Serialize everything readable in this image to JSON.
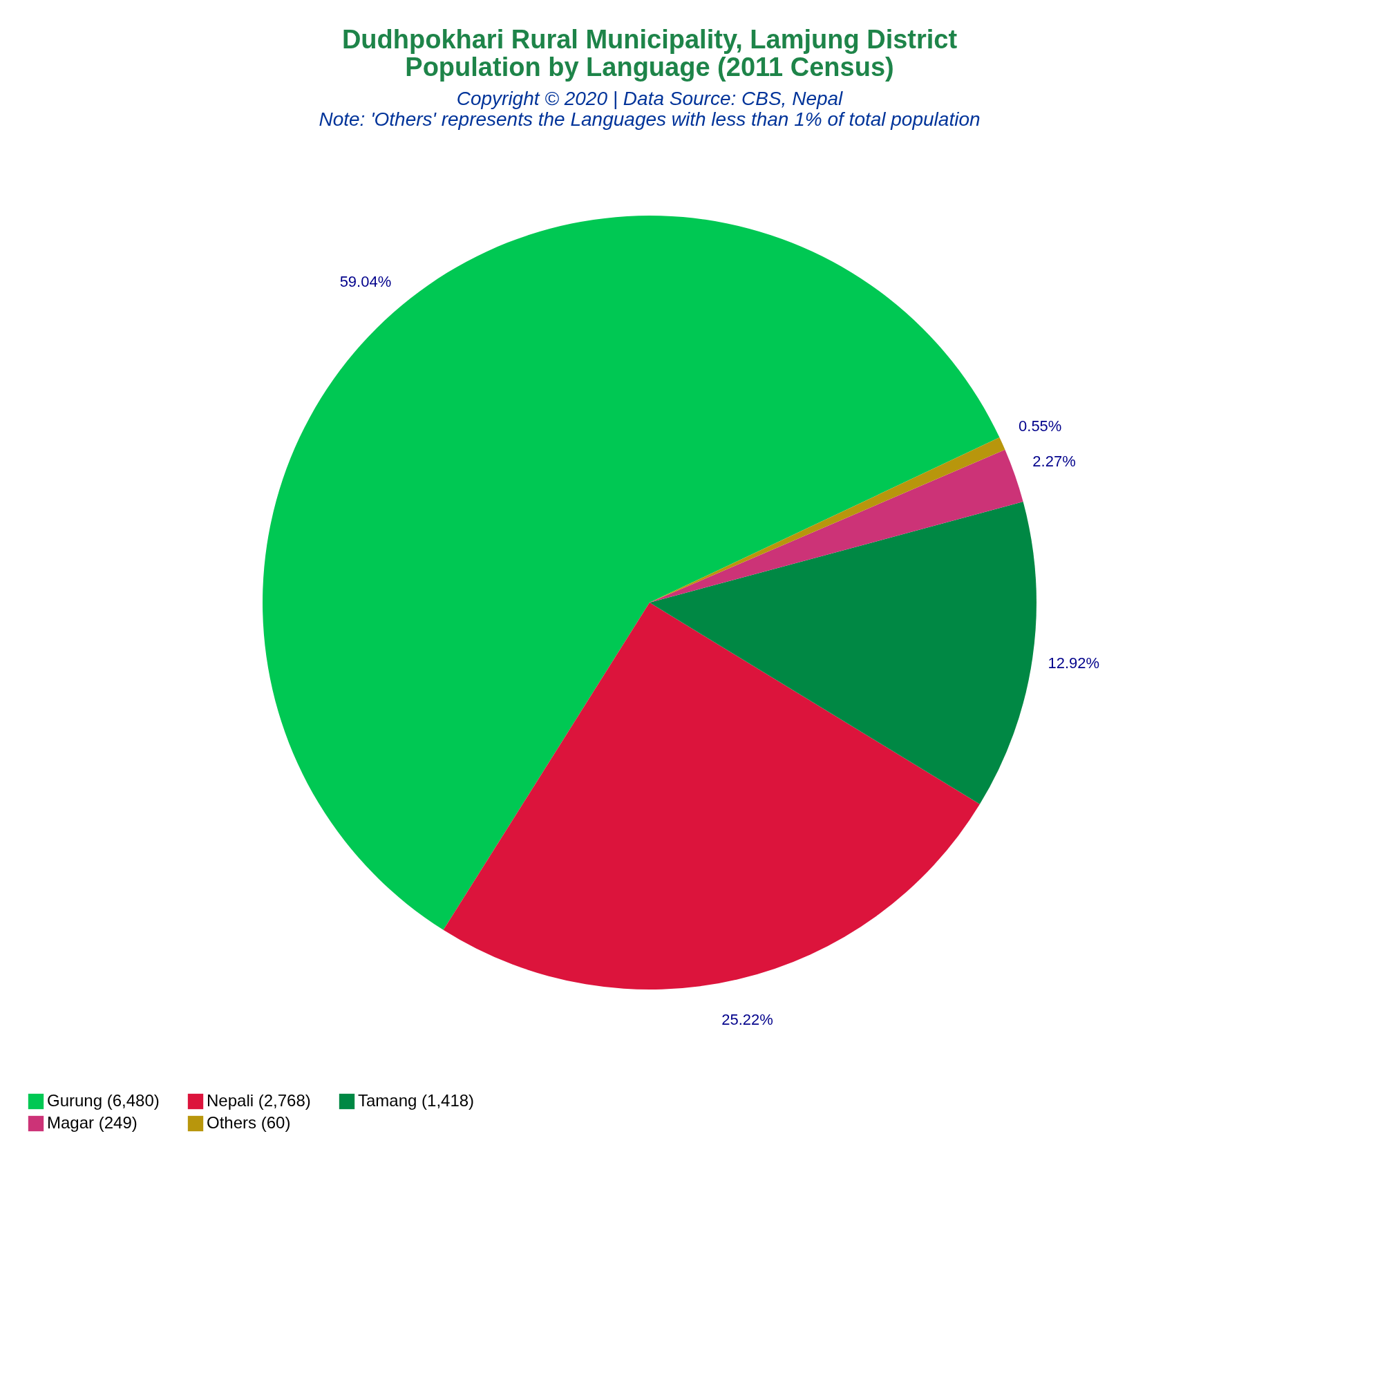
{
  "chart_data": {
    "type": "pie",
    "title": "Dudhpokhari Rural Municipality, Lamjung District\nPopulation by Language (2011 Census)",
    "subtitle": "Copyright © 2020 | Data Source: CBS, Nepal",
    "annotations": [
      "Note: 'Others' represents the Languages with less than 1% of total population"
    ],
    "categories": [
      "Gurung (6,480)",
      "Nepali (2,768)",
      "Tamang (1,418)",
      "Magar (249)",
      "Others (60)"
    ],
    "values": [
      59.04,
      25.22,
      12.92,
      2.27,
      0.55
    ],
    "value_labels": [
      "59.04%",
      "25.22%",
      "12.92%",
      "2.27%",
      "0.55%"
    ],
    "colors": [
      "#00c853",
      "#dc143c",
      "#008844",
      "#cc3377",
      "#b8960c"
    ],
    "legend": "bottom"
  }
}
